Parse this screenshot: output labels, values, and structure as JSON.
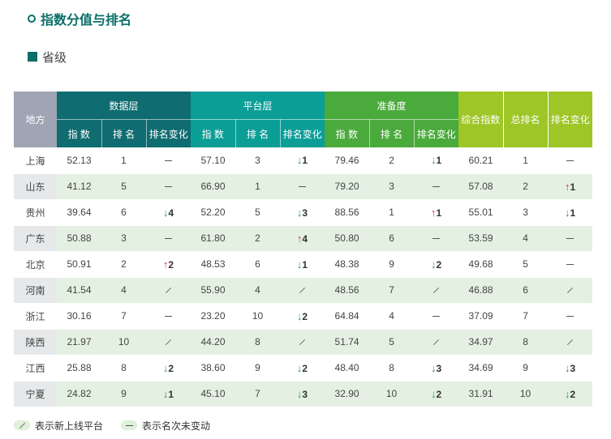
{
  "title": "指数分值与排名",
  "subtitle": "省级",
  "header": {
    "region": "地方",
    "groups": [
      "数据层",
      "平台层",
      "准备度"
    ],
    "sub": {
      "index": "指 数",
      "rank": "排 名",
      "change": "排名变化"
    },
    "total": {
      "index": "综合指数",
      "rank": "总排名",
      "change": "排名变化"
    }
  },
  "rows": [
    {
      "region": "上海",
      "d": [
        "52.13",
        "1",
        {
          "t": "dash"
        }
      ],
      "p": [
        "57.10",
        "3",
        {
          "t": "down",
          "v": "1"
        }
      ],
      "r": [
        "79.46",
        "2",
        {
          "t": "down",
          "v": "1"
        }
      ],
      "s": [
        "60.21",
        "1",
        {
          "t": "dash"
        }
      ]
    },
    {
      "region": "山东",
      "d": [
        "41.12",
        "5",
        {
          "t": "dash"
        }
      ],
      "p": [
        "66.90",
        "1",
        {
          "t": "dash"
        }
      ],
      "r": [
        "79.20",
        "3",
        {
          "t": "dash"
        }
      ],
      "s": [
        "57.08",
        "2",
        {
          "t": "up",
          "v": "1"
        }
      ]
    },
    {
      "region": "贵州",
      "d": [
        "39.64",
        "6",
        {
          "t": "down",
          "v": "4"
        }
      ],
      "p": [
        "52.20",
        "5",
        {
          "t": "down",
          "v": "3"
        }
      ],
      "r": [
        "88.56",
        "1",
        {
          "t": "up",
          "v": "1"
        }
      ],
      "s": [
        "55.01",
        "3",
        {
          "t": "down",
          "v": "1"
        }
      ]
    },
    {
      "region": "广东",
      "d": [
        "50.88",
        "3",
        {
          "t": "dash"
        }
      ],
      "p": [
        "61.80",
        "2",
        {
          "t": "up",
          "v": "4"
        }
      ],
      "r": [
        "50.80",
        "6",
        {
          "t": "dash"
        }
      ],
      "s": [
        "53.59",
        "4",
        {
          "t": "dash"
        }
      ]
    },
    {
      "region": "北京",
      "d": [
        "50.91",
        "2",
        {
          "t": "up",
          "v": "2"
        }
      ],
      "p": [
        "48.53",
        "6",
        {
          "t": "down",
          "v": "1"
        }
      ],
      "r": [
        "48.38",
        "9",
        {
          "t": "down",
          "v": "2"
        }
      ],
      "s": [
        "49.68",
        "5",
        {
          "t": "dash"
        }
      ]
    },
    {
      "region": "河南",
      "d": [
        "41.54",
        "4",
        {
          "t": "new"
        }
      ],
      "p": [
        "55.90",
        "4",
        {
          "t": "new"
        }
      ],
      "r": [
        "48.56",
        "7",
        {
          "t": "new"
        }
      ],
      "s": [
        "46.88",
        "6",
        {
          "t": "new"
        }
      ]
    },
    {
      "region": "浙江",
      "d": [
        "30.16",
        "7",
        {
          "t": "dash"
        }
      ],
      "p": [
        "23.20",
        "10",
        {
          "t": "down",
          "v": "2"
        }
      ],
      "r": [
        "64.84",
        "4",
        {
          "t": "dash"
        }
      ],
      "s": [
        "37.09",
        "7",
        {
          "t": "dash"
        }
      ]
    },
    {
      "region": "陕西",
      "d": [
        "21.97",
        "10",
        {
          "t": "new"
        }
      ],
      "p": [
        "44.20",
        "8",
        {
          "t": "new"
        }
      ],
      "r": [
        "51.74",
        "5",
        {
          "t": "new"
        }
      ],
      "s": [
        "34.97",
        "8",
        {
          "t": "new"
        }
      ]
    },
    {
      "region": "江西",
      "d": [
        "25.88",
        "8",
        {
          "t": "down",
          "v": "2"
        }
      ],
      "p": [
        "38.60",
        "9",
        {
          "t": "down",
          "v": "2"
        }
      ],
      "r": [
        "48.40",
        "8",
        {
          "t": "down",
          "v": "3"
        }
      ],
      "s": [
        "34.69",
        "9",
        {
          "t": "down",
          "v": "3"
        }
      ]
    },
    {
      "region": "宁夏",
      "d": [
        "24.82",
        "9",
        {
          "t": "down",
          "v": "1"
        }
      ],
      "p": [
        "45.10",
        "7",
        {
          "t": "down",
          "v": "3"
        }
      ],
      "r": [
        "32.90",
        "10",
        {
          "t": "down",
          "v": "2"
        }
      ],
      "s": [
        "31.91",
        "10",
        {
          "t": "down",
          "v": "2"
        }
      ]
    }
  ],
  "legend": {
    "new": "表示新上线平台",
    "same": "表示名次未变动"
  },
  "colors": {
    "accent": "#0a6e68",
    "up": "#d8342a",
    "down": "#2f9a35"
  }
}
